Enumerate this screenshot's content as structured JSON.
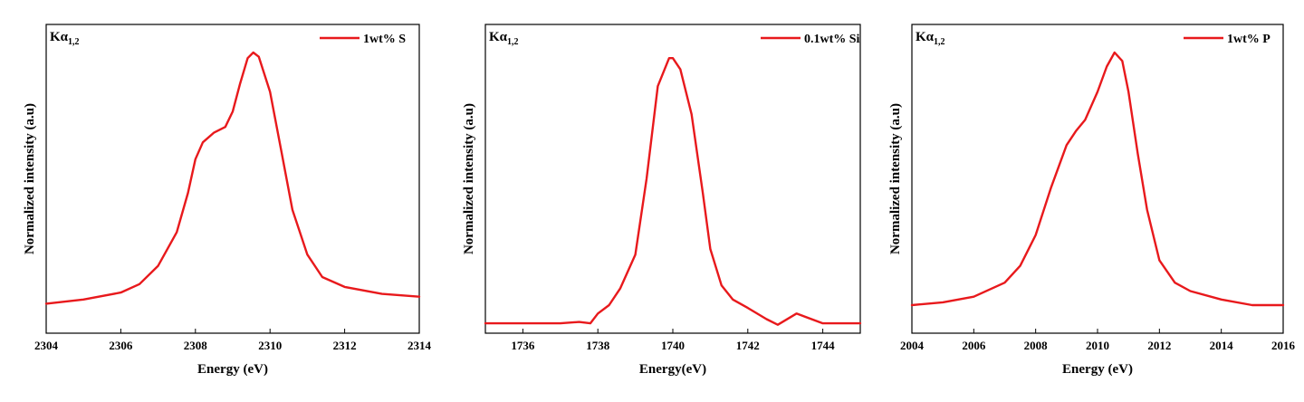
{
  "chart_data": [
    {
      "type": "line",
      "annotation": {
        "main": "Kα",
        "sub": "1,2"
      },
      "xlabel": "Energy (eV)",
      "ylabel": "Normalized intensity (a.u)",
      "xlim": [
        2304,
        2314
      ],
      "ylim": [
        0,
        1.1
      ],
      "xticks": [
        2304,
        2306,
        2308,
        2310,
        2312,
        2314
      ],
      "legend_position": "top-right",
      "series": [
        {
          "name": "1wt% S",
          "color": "#e8191c",
          "x": [
            2304,
            2305,
            2306,
            2306.5,
            2307,
            2307.5,
            2307.8,
            2308,
            2308.2,
            2308.5,
            2308.8,
            2309,
            2309.2,
            2309.4,
            2309.55,
            2309.7,
            2310,
            2310.3,
            2310.6,
            2311,
            2311.4,
            2312,
            2313,
            2314
          ],
          "values": [
            0.105,
            0.12,
            0.145,
            0.175,
            0.24,
            0.36,
            0.5,
            0.62,
            0.68,
            0.715,
            0.735,
            0.79,
            0.89,
            0.98,
            1.0,
            0.985,
            0.86,
            0.65,
            0.44,
            0.28,
            0.2,
            0.165,
            0.14,
            0.13
          ]
        }
      ]
    },
    {
      "type": "line",
      "annotation": {
        "main": "Kα",
        "sub": "1,2"
      },
      "xlabel": "Energy(eV)",
      "ylabel": "Normalized intensity (a.u)",
      "xlim": [
        1735,
        1745
      ],
      "ylim": [
        0,
        1.1
      ],
      "xticks": [
        1736,
        1738,
        1740,
        1742,
        1744
      ],
      "legend_position": "top-right",
      "series": [
        {
          "name": "0.1wt% Si",
          "color": "#e8191c",
          "x": [
            1735,
            1736,
            1737,
            1737.5,
            1737.8,
            1738,
            1738.3,
            1738.6,
            1739,
            1739.3,
            1739.6,
            1739.9,
            1740,
            1740.2,
            1740.5,
            1740.8,
            1741,
            1741.3,
            1741.6,
            1742,
            1742.5,
            1742.8,
            1743.3,
            1744,
            1745
          ],
          "values": [
            0.035,
            0.035,
            0.035,
            0.04,
            0.035,
            0.07,
            0.1,
            0.16,
            0.28,
            0.55,
            0.88,
            0.98,
            0.98,
            0.94,
            0.78,
            0.5,
            0.3,
            0.17,
            0.12,
            0.09,
            0.05,
            0.03,
            0.07,
            0.035,
            0.035
          ]
        }
      ]
    },
    {
      "type": "line",
      "annotation": {
        "main": "Kα",
        "sub": "1,2"
      },
      "xlabel": "Energy (eV)",
      "ylabel": "Normalized intensity (a.u)",
      "xlim": [
        2004,
        2016
      ],
      "ylim": [
        0,
        1.1
      ],
      "xticks": [
        2004,
        2006,
        2008,
        2010,
        2012,
        2014,
        2016
      ],
      "legend_position": "top-right",
      "series": [
        {
          "name": "1wt% P",
          "color": "#e8191c",
          "x": [
            2004,
            2005,
            2006,
            2007,
            2007.5,
            2008,
            2008.5,
            2009,
            2009.3,
            2009.6,
            2010,
            2010.3,
            2010.55,
            2010.8,
            2011,
            2011.3,
            2011.6,
            2012,
            2012.5,
            2013,
            2014,
            2015,
            2016
          ],
          "values": [
            0.1,
            0.11,
            0.13,
            0.18,
            0.24,
            0.35,
            0.52,
            0.67,
            0.72,
            0.76,
            0.86,
            0.95,
            1.0,
            0.97,
            0.86,
            0.64,
            0.44,
            0.26,
            0.18,
            0.15,
            0.12,
            0.1,
            0.1
          ]
        }
      ]
    }
  ]
}
